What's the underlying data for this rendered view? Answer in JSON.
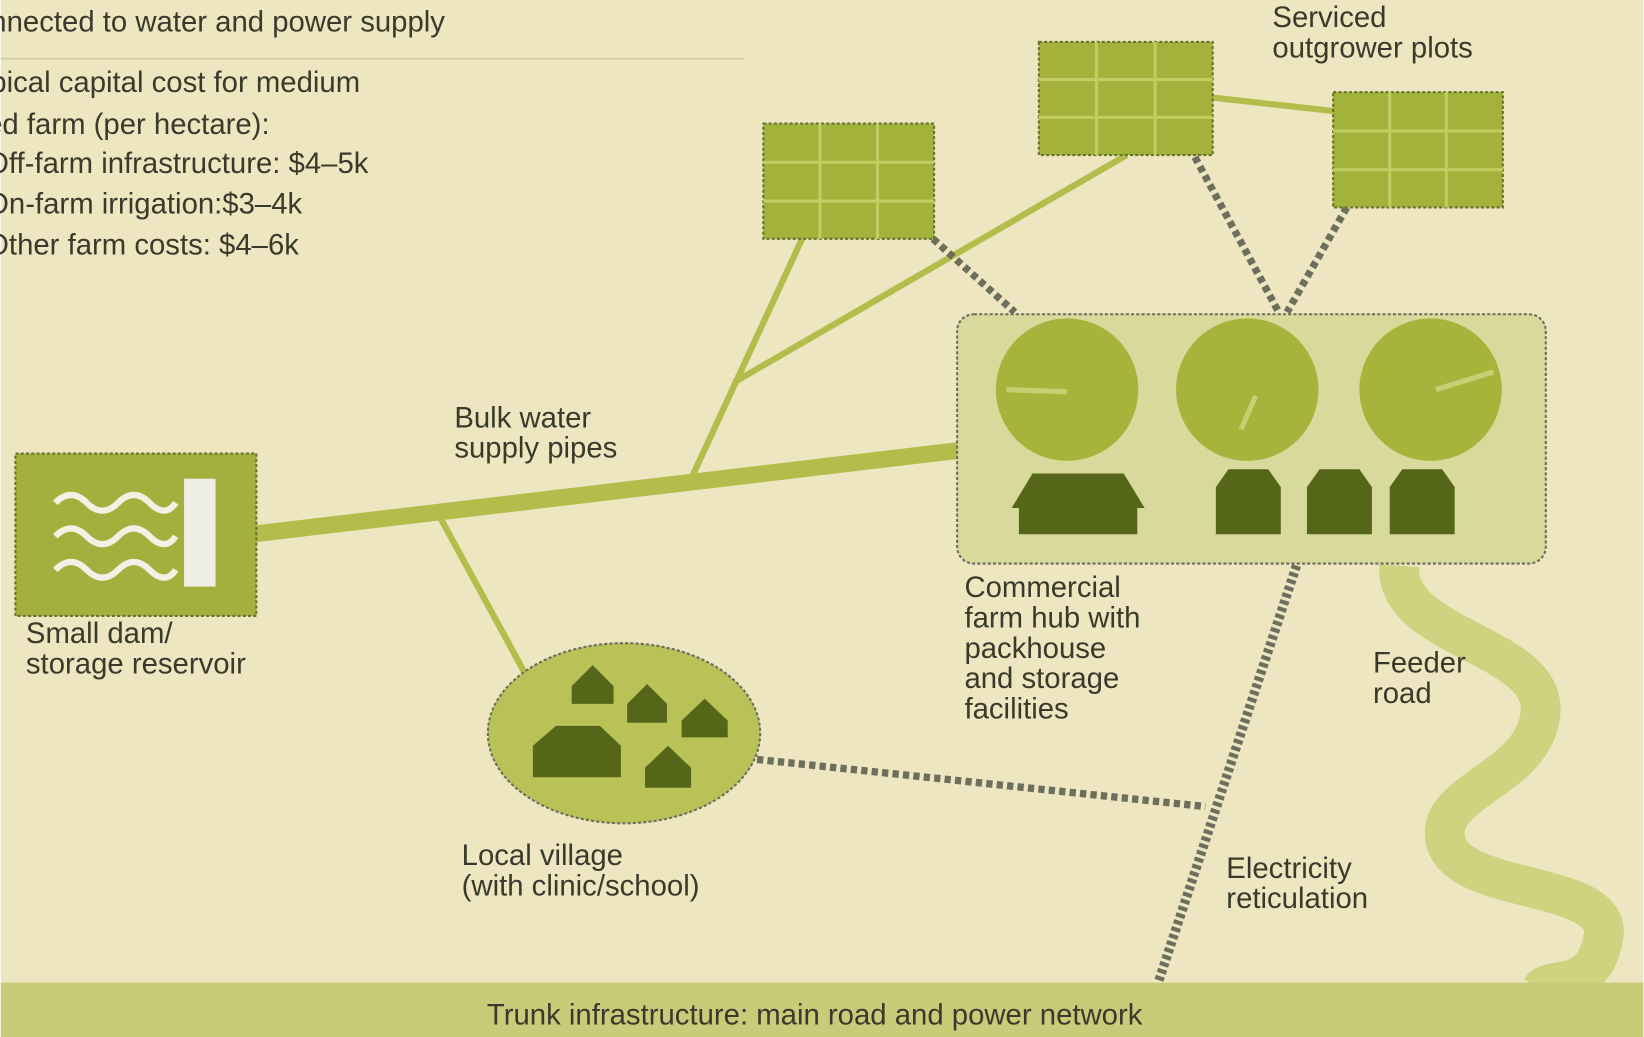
{
  "intro": {
    "lines": [
      "nnected to water and power supply",
      "pical capital cost for medium",
      "ed farm (per hectare):",
      "Off-farm infrastructure: $4–5k",
      "On-farm irrigation:$3–4k",
      "Other farm costs: $4–6k"
    ]
  },
  "labels": {
    "plots": [
      "Serviced",
      "outgrower plots"
    ],
    "pipes": [
      "Bulk water",
      "supply pipes"
    ],
    "dam": [
      "Small dam/",
      "storage reservoir"
    ],
    "hub": [
      "Commercial",
      "farm hub with",
      "packhouse",
      "and storage",
      "facilities"
    ],
    "road": [
      "Feeder",
      "road"
    ],
    "village": [
      "Local village",
      "(with clinic/school)"
    ],
    "electricity": [
      "Electricity",
      "reticulation"
    ]
  },
  "footer": "Trunk infrastructure: main road and power network"
}
